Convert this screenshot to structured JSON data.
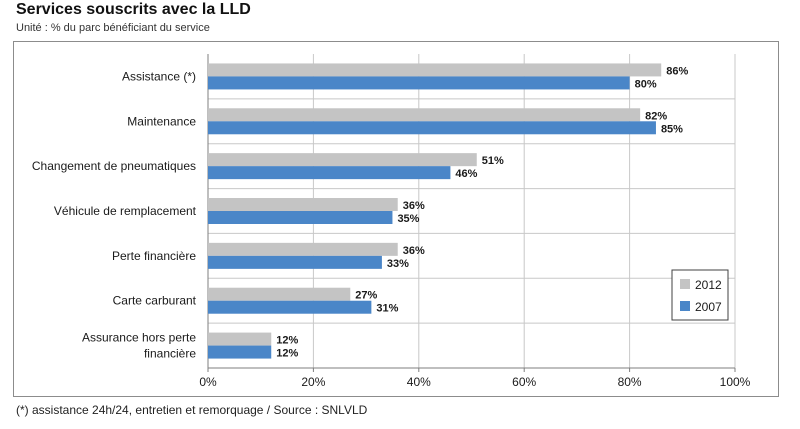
{
  "header": {
    "title": "Services souscrits avec la LLD",
    "subtitle": "Unité : % du parc bénéficiant du service"
  },
  "footnote": "(*) assistance 24h/24, entretien et remorquage / Source : SNLVLD",
  "colors": {
    "series_2012": "#c4c4c4",
    "series_2007": "#4a86c8",
    "grid": "#c8c8c8",
    "axis": "#7f7f7f"
  },
  "chart_data": {
    "type": "bar",
    "orientation": "horizontal",
    "title": "Services souscrits avec la LLD",
    "subtitle": "Unité : % du parc bénéficiant du service",
    "categories": [
      "Assistance (*)",
      "Maintenance",
      "Changement de pneumatiques",
      "Véhicule de remplacement",
      "Perte financière",
      "Carte carburant",
      "Assurance hors perte financière"
    ],
    "category_label_lines": [
      [
        "Assistance (*)"
      ],
      [
        "Maintenance"
      ],
      [
        "Changement de pneumatiques"
      ],
      [
        "Véhicule de remplacement"
      ],
      [
        "Perte financière"
      ],
      [
        "Carte carburant"
      ],
      [
        "Assurance hors perte",
        "financière"
      ]
    ],
    "series": [
      {
        "name": "2012",
        "values": [
          86,
          82,
          51,
          36,
          36,
          27,
          12
        ],
        "labels": [
          "86%",
          "82%",
          "51%",
          "36%",
          "36%",
          "27%",
          "12%"
        ]
      },
      {
        "name": "2007",
        "values": [
          80,
          85,
          46,
          35,
          33,
          31,
          12
        ],
        "labels": [
          "80%",
          "85%",
          "46%",
          "35%",
          "33%",
          "31%",
          "12%"
        ]
      }
    ],
    "xlim": [
      0,
      100
    ],
    "xticks": [
      0,
      20,
      40,
      60,
      80,
      100
    ],
    "xtick_labels": [
      "0%",
      "20%",
      "40%",
      "60%",
      "80%",
      "100%"
    ],
    "grid": true,
    "legend": {
      "position": "lower-right",
      "entries": [
        "2012",
        "2007"
      ]
    }
  }
}
